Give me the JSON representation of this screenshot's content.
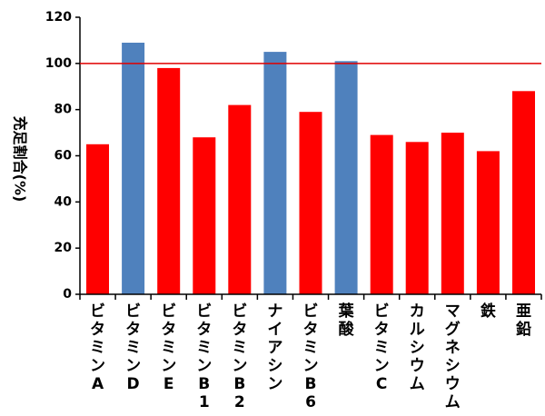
{
  "chart_data": {
    "type": "bar",
    "ylabel": "充足割合(%)",
    "ylim": [
      0,
      120
    ],
    "yticks": [
      "0",
      "20",
      "40",
      "60",
      "80",
      "100",
      "120"
    ],
    "reference_line": {
      "value": 100,
      "color": "#e00000"
    },
    "grid": false,
    "categories": [
      "ビタミンA",
      "ビタミンD",
      "ビタミンE",
      "ビタミンB1",
      "ビタミンB2",
      "ナイアシン",
      "ビタミンB6",
      "葉酸",
      "ビタミンC",
      "カルシウム",
      "マグネシウム",
      "鉄",
      "亜鉛"
    ],
    "values": [
      65,
      109,
      98,
      68,
      82,
      105,
      79,
      101,
      69,
      66,
      70,
      62,
      88
    ],
    "colors": [
      "#ff0000",
      "#4f81bd",
      "#ff0000",
      "#ff0000",
      "#ff0000",
      "#4f81bd",
      "#ff0000",
      "#4f81bd",
      "#ff0000",
      "#ff0000",
      "#ff0000",
      "#ff0000",
      "#ff0000"
    ]
  }
}
